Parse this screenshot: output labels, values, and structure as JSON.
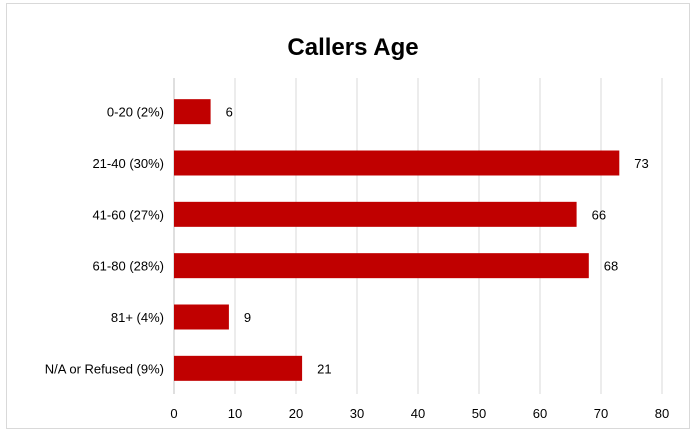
{
  "chart_data": {
    "type": "bar",
    "orientation": "horizontal",
    "title": "Callers Age",
    "categories": [
      "0-20 (2%)",
      "21-40 (30%)",
      "41-60 (27%)",
      "61-80 (28%)",
      "81+ (4%)",
      "N/A or Refused (9%)"
    ],
    "values": [
      6,
      73,
      66,
      68,
      9,
      21
    ],
    "data_labels": [
      "6",
      "73",
      "66",
      "68",
      "9",
      "21"
    ],
    "xlabel": "",
    "ylabel": "",
    "xlim": [
      0,
      80
    ],
    "x_ticks": [
      0,
      10,
      20,
      30,
      40,
      50,
      60,
      70,
      80
    ],
    "grid": true,
    "legend": "none",
    "bar_color": "#c00000"
  }
}
